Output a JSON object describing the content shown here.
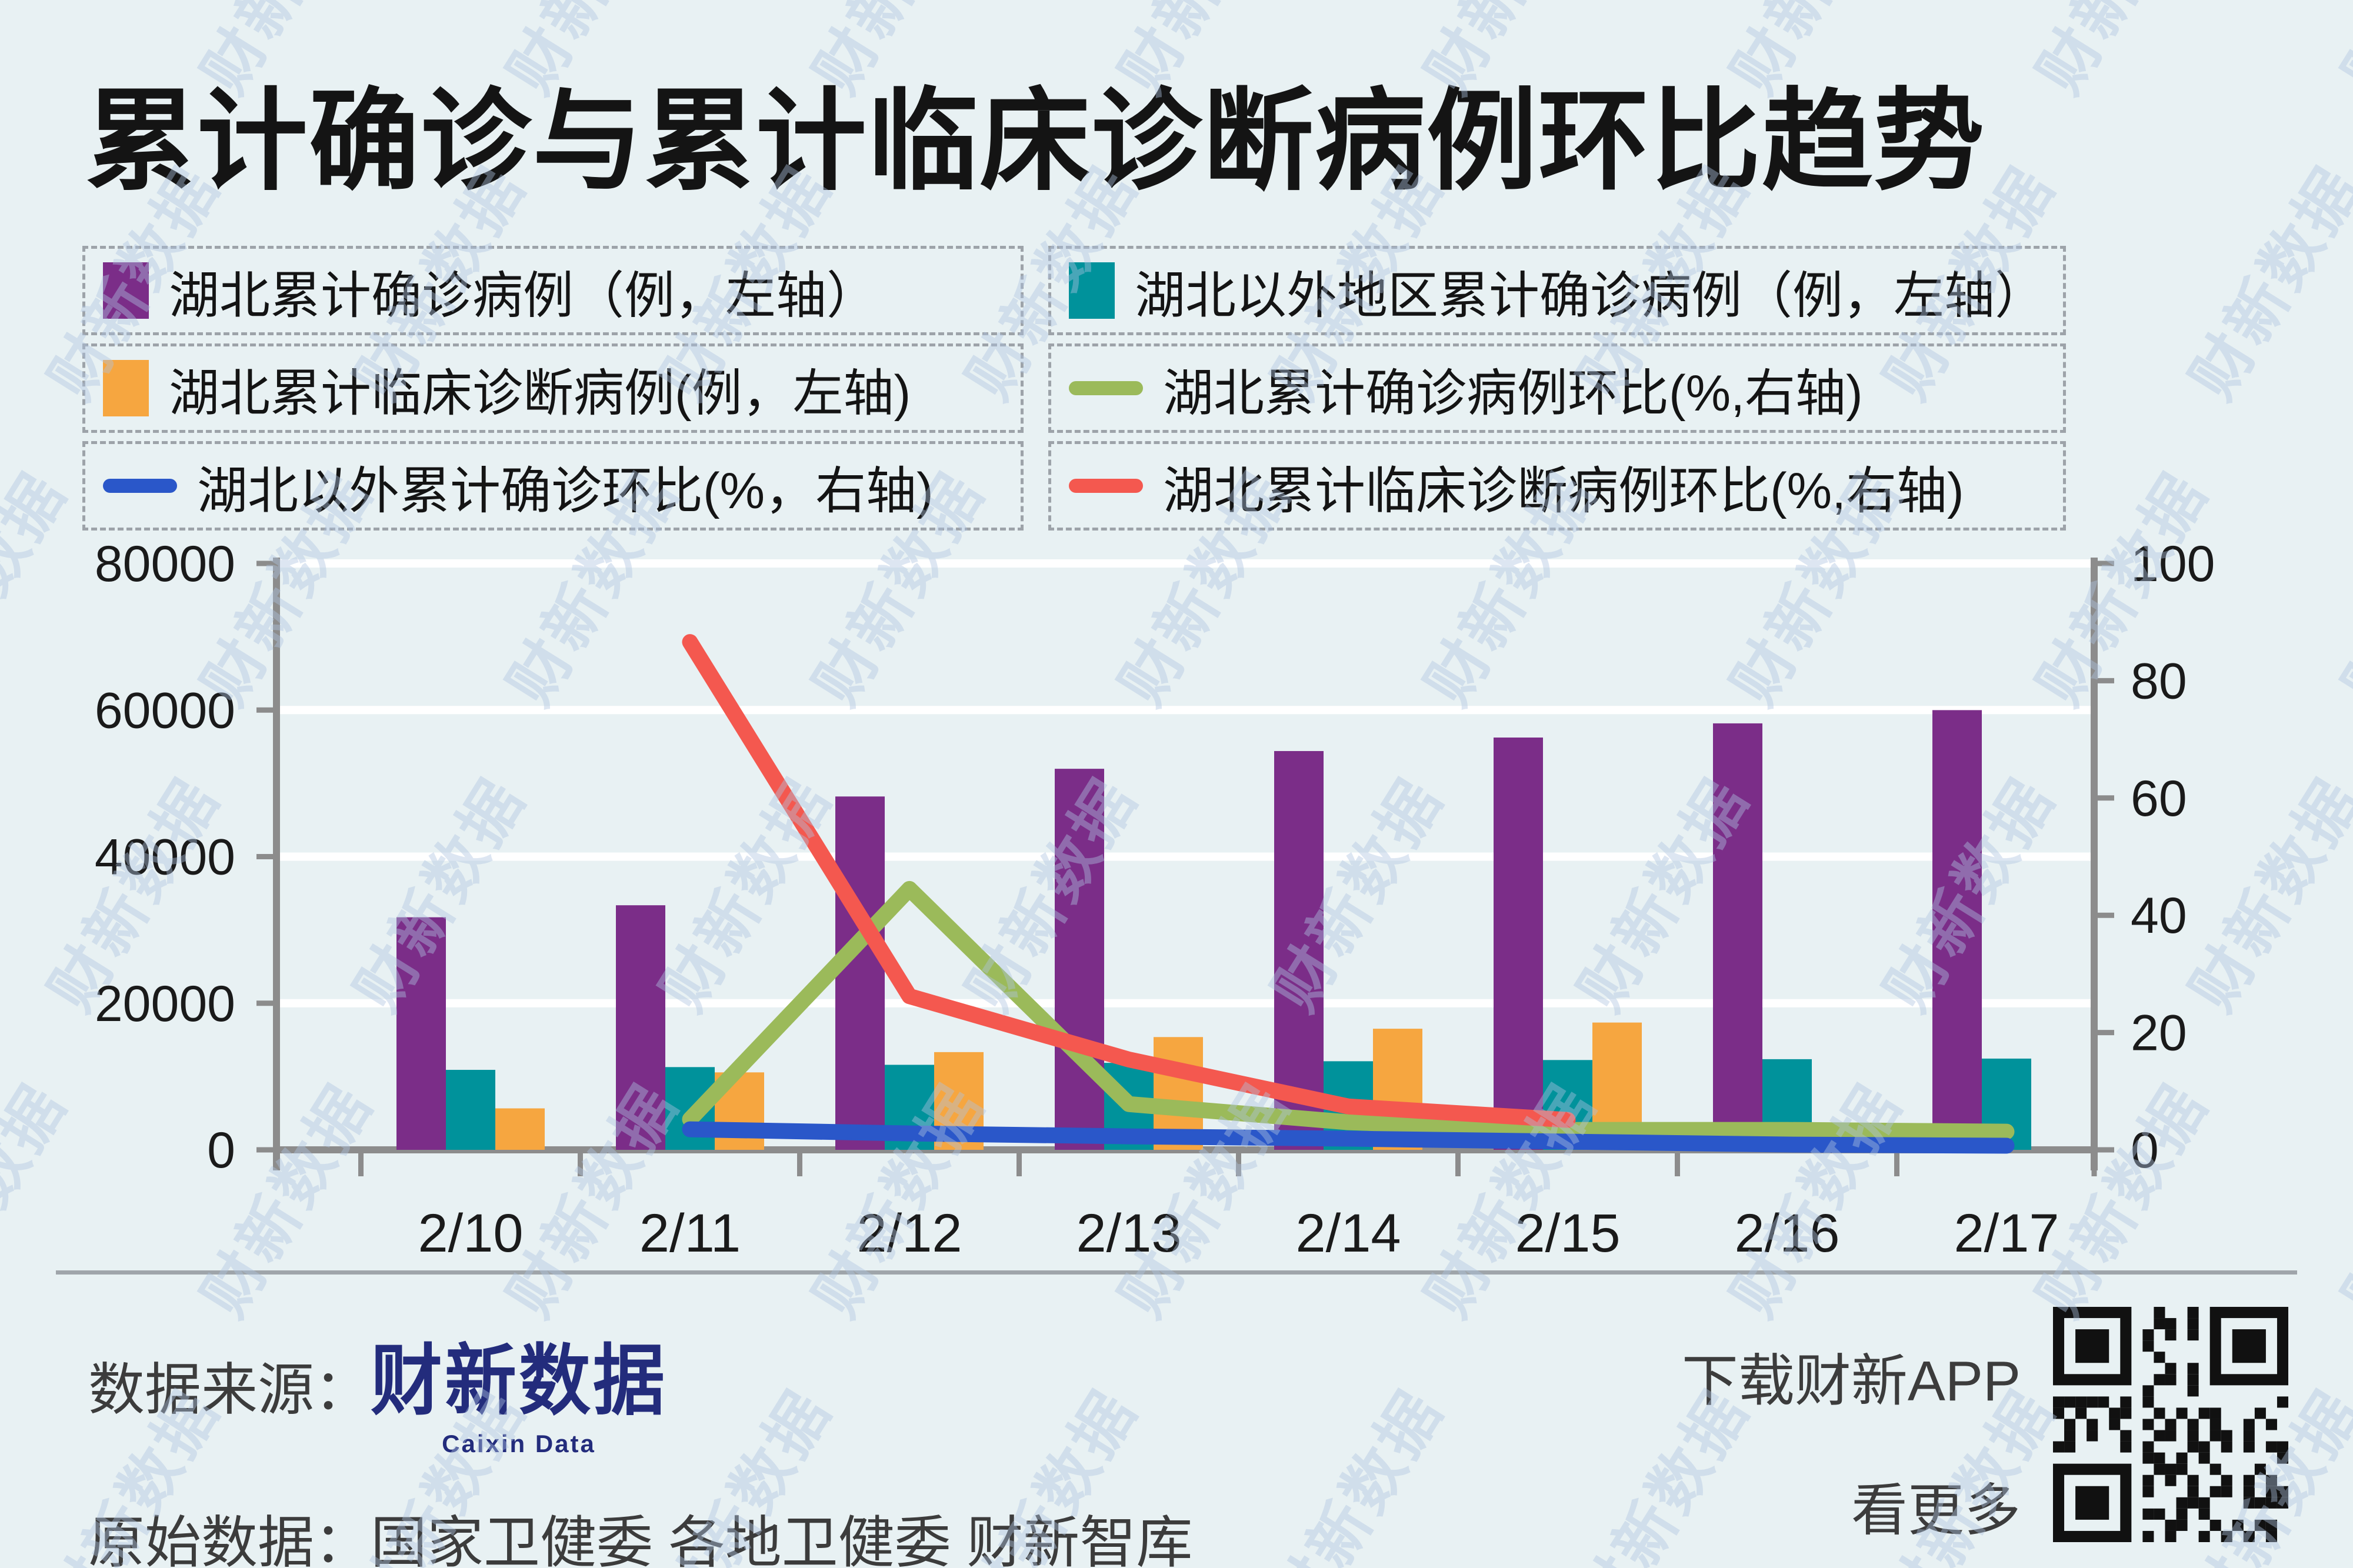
{
  "title": "累计确诊与累计临床诊断病例环比趋势",
  "watermark": {
    "text": "财新数据"
  },
  "colors": {
    "background": "#E8F1F3",
    "purple": "#7B2D88",
    "teal": "#00929B",
    "orange": "#F6A640",
    "green": "#9BBA5A",
    "blue": "#2A57C9",
    "red": "#F4584F",
    "axis": "#8C8C8C",
    "grid": "#FFFFFF",
    "text": "#141414",
    "footer_text": "#3C3C3C",
    "logo_navy": "#232C7C",
    "legend_border": "#9DA3A9",
    "qr": "#111111"
  },
  "legend": {
    "columns": [
      [
        {
          "swatch": "square",
          "color_key": "purple",
          "label": "湖北累计确诊病例（例，左轴）"
        },
        {
          "swatch": "square",
          "color_key": "orange",
          "label": "湖北累计临床诊断病例(例，左轴)"
        },
        {
          "swatch": "line",
          "color_key": "blue",
          "label": "湖北以外累计确诊环比(%，右轴)"
        }
      ],
      [
        {
          "swatch": "square",
          "color_key": "teal",
          "label": "湖北以外地区累计确诊病例（例，左轴）"
        },
        {
          "swatch": "line",
          "color_key": "green",
          "label": "湖北累计确诊病例环比(%,右轴)"
        },
        {
          "swatch": "line",
          "color_key": "red",
          "label": "湖北累计临床诊断病例环比(%,右轴)"
        }
      ]
    ]
  },
  "chart_data": {
    "type": "combo-bar-line",
    "categories": [
      "2/10",
      "2/11",
      "2/12",
      "2/13",
      "2/14",
      "2/15",
      "2/16",
      "2/17"
    ],
    "left_axis": {
      "ticks": [
        0,
        20000,
        40000,
        60000,
        80000
      ],
      "range": [
        0,
        80000
      ]
    },
    "right_axis": {
      "ticks": [
        0,
        20,
        40,
        60,
        80,
        100
      ],
      "range": [
        0,
        100
      ]
    },
    "grid": "horizontal-white",
    "legend_position": "top",
    "series": [
      {
        "name": "湖北累计确诊病例（例，左轴）",
        "type": "bar",
        "axis": "left",
        "color_key": "purple",
        "values": [
          31728,
          33366,
          48206,
          51986,
          54406,
          56249,
          58182,
          59989
        ]
      },
      {
        "name": "湖北以外地区累计确诊病例（例，左轴）",
        "type": "bar",
        "axis": "left",
        "color_key": "teal",
        "values": [
          10910,
          11287,
          11598,
          11865,
          12086,
          12251,
          12366,
          12447
        ]
      },
      {
        "name": "湖北累计临床诊断病例(例，左轴)",
        "type": "bar",
        "axis": "left",
        "color_key": "orange",
        "values": [
          5657,
          10567,
          13332,
          15384,
          16522,
          17365,
          null,
          null
        ]
      },
      {
        "name": "湖北累计确诊病例环比(%,右轴)",
        "type": "line",
        "axis": "right",
        "color_key": "green",
        "values": [
          null,
          5.2,
          44.5,
          7.8,
          4.7,
          3.4,
          3.4,
          3.1
        ]
      },
      {
        "name": "湖北累计临床诊断病例环比(%,右轴)",
        "type": "line",
        "axis": "right",
        "color_key": "red",
        "values": [
          null,
          86.6,
          26.2,
          15.4,
          7.4,
          5.1,
          null,
          null
        ]
      },
      {
        "name": "湖北以外累计确诊环比(%，右轴)",
        "type": "line",
        "axis": "right",
        "color_key": "blue",
        "values": [
          null,
          3.5,
          2.8,
          2.3,
          1.9,
          1.4,
          0.9,
          0.7
        ]
      }
    ]
  },
  "footer": {
    "source_label": "数据来源：",
    "logo_text": "财新数据",
    "logo_subtext": "Caixin Data",
    "raw_label": "原始数据：",
    "raw_value": "国家卫健委 各地卫健委 财新智库",
    "app_text": "下载财新APP",
    "more_text": "看更多"
  }
}
